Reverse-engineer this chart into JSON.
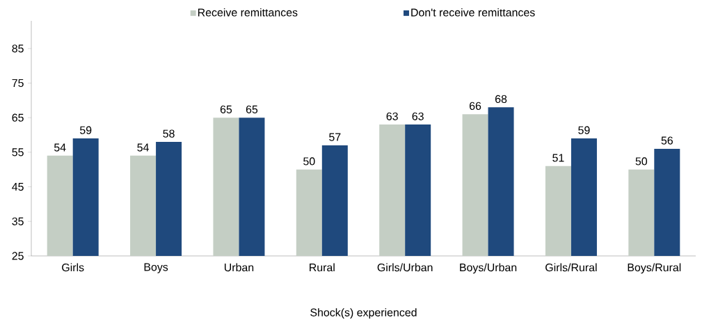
{
  "chart_data": {
    "type": "bar",
    "xlabel": "Shock(s) experienced",
    "categories": [
      "Girls",
      "Boys",
      "Urban",
      "Rural",
      "Girls/Urban",
      "Boys/Urban",
      "Girls/Rural",
      "Boys/Rural"
    ],
    "series": [
      {
        "name": "Receive remittances",
        "color": "#c4cec4",
        "values": [
          54,
          54,
          65,
          50,
          63,
          66,
          51,
          50
        ]
      },
      {
        "name": "Don't receive remittances",
        "color": "#1f497d",
        "values": [
          59,
          58,
          65,
          57,
          63,
          68,
          59,
          56
        ]
      }
    ],
    "ylim": [
      25,
      93
    ],
    "yticks": [
      25,
      35,
      45,
      55,
      65,
      75,
      85
    ],
    "data_labels": true,
    "legend": "top",
    "grid": false
  }
}
